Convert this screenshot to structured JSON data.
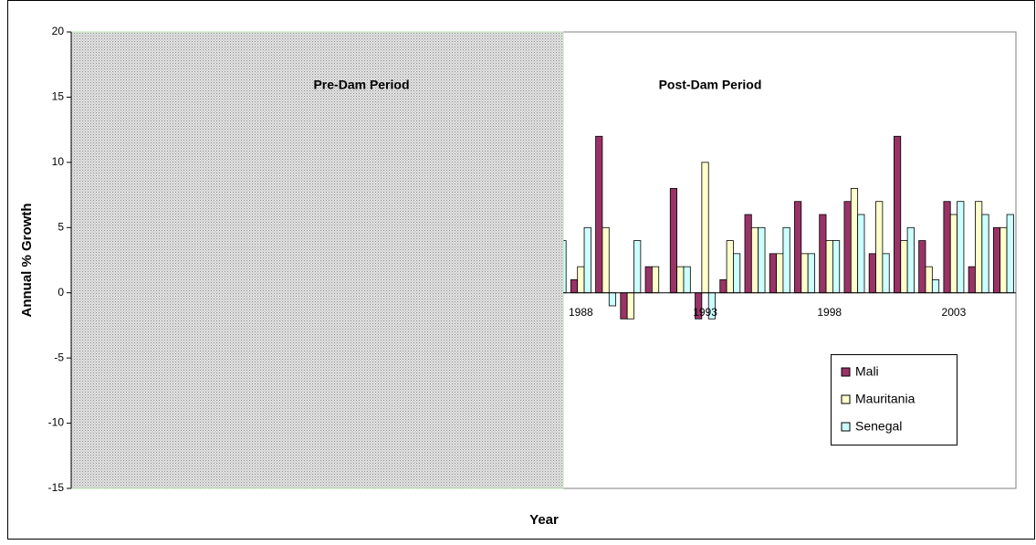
{
  "chart_data": {
    "type": "bar",
    "y_label": "Annual % Growth",
    "x_label": "Year",
    "annotations": [
      "Pre-Dam Period",
      "Post-Dam Period"
    ],
    "categories": [
      null,
      null,
      null,
      null,
      null,
      null,
      null,
      null,
      null,
      null,
      null,
      null,
      null,
      null,
      null,
      null,
      null,
      null,
      null,
      null,
      "1988",
      null,
      null,
      null,
      null,
      "1993",
      null,
      null,
      null,
      null,
      "1998",
      null,
      null,
      null,
      null,
      "2003",
      null,
      null
    ],
    "series": [
      {
        "name": "Mali",
        "color": "#993366",
        "values": [
          null,
          null,
          null,
          null,
          null,
          null,
          null,
          null,
          null,
          null,
          null,
          null,
          null,
          null,
          null,
          null,
          null,
          null,
          null,
          null,
          1,
          12,
          -2,
          2,
          8,
          -2,
          1,
          6,
          3,
          7,
          6,
          7,
          3,
          12,
          4,
          7,
          2,
          5
        ]
      },
      {
        "name": "Mauritania",
        "color": "#ffffcc",
        "values": [
          null,
          null,
          null,
          null,
          null,
          null,
          null,
          null,
          null,
          null,
          null,
          null,
          null,
          null,
          null,
          null,
          null,
          null,
          null,
          null,
          2,
          5,
          -2,
          2,
          2,
          10,
          4,
          5,
          3,
          3,
          4,
          8,
          7,
          4,
          2,
          6,
          7,
          5
        ]
      },
      {
        "name": "Senegal",
        "color": "#ccffff",
        "values": [
          null,
          null,
          null,
          null,
          null,
          null,
          null,
          null,
          null,
          null,
          null,
          null,
          null,
          null,
          null,
          null,
          null,
          null,
          null,
          4,
          5,
          -1,
          4,
          0,
          2,
          -2,
          3,
          5,
          5,
          3,
          4,
          6,
          3,
          5,
          1,
          7,
          6,
          6
        ]
      }
    ],
    "ylim": [
      -15,
      20
    ],
    "yticks": [
      -15,
      -10,
      -5,
      0,
      5,
      10,
      15,
      20
    ],
    "legend": "right"
  }
}
